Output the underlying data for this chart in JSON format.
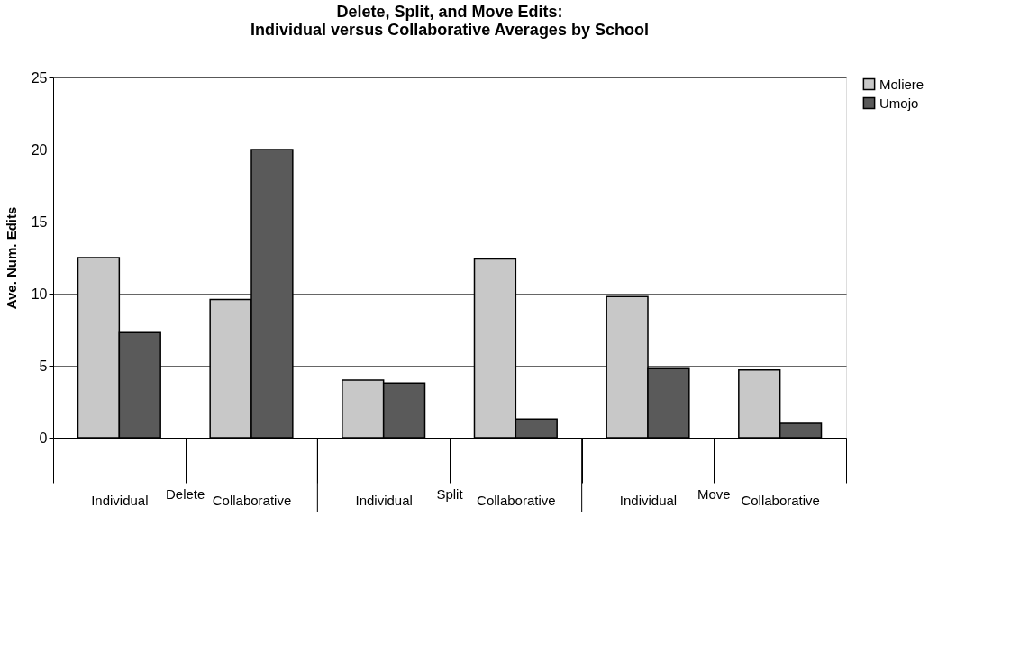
{
  "chart_data": {
    "type": "bar",
    "title": [
      "Delete, Split, and Move Edits:",
      "Individual versus Collaborative Averages by School"
    ],
    "ylabel": "Ave. Num. Edits",
    "categories": [
      "Individual",
      "Collaborative",
      "Individual",
      "Collaborative",
      "Individual",
      "Collaborative"
    ],
    "annotations": [
      "Delete",
      "Split",
      "Move"
    ],
    "series": [
      {
        "name": "Moliere",
        "color": "#c8c8c8",
        "values": [
          12.5,
          9.6,
          4.0,
          12.4,
          9.8,
          4.7
        ]
      },
      {
        "name": "Umojo",
        "color": "#5a5a5a",
        "values": [
          7.3,
          20.0,
          3.8,
          1.3,
          4.8,
          1.0
        ]
      }
    ],
    "ylim": [
      0,
      25
    ],
    "yticks": [
      0,
      5,
      10,
      15,
      20,
      25
    ],
    "grid": "y",
    "legend": "right"
  }
}
